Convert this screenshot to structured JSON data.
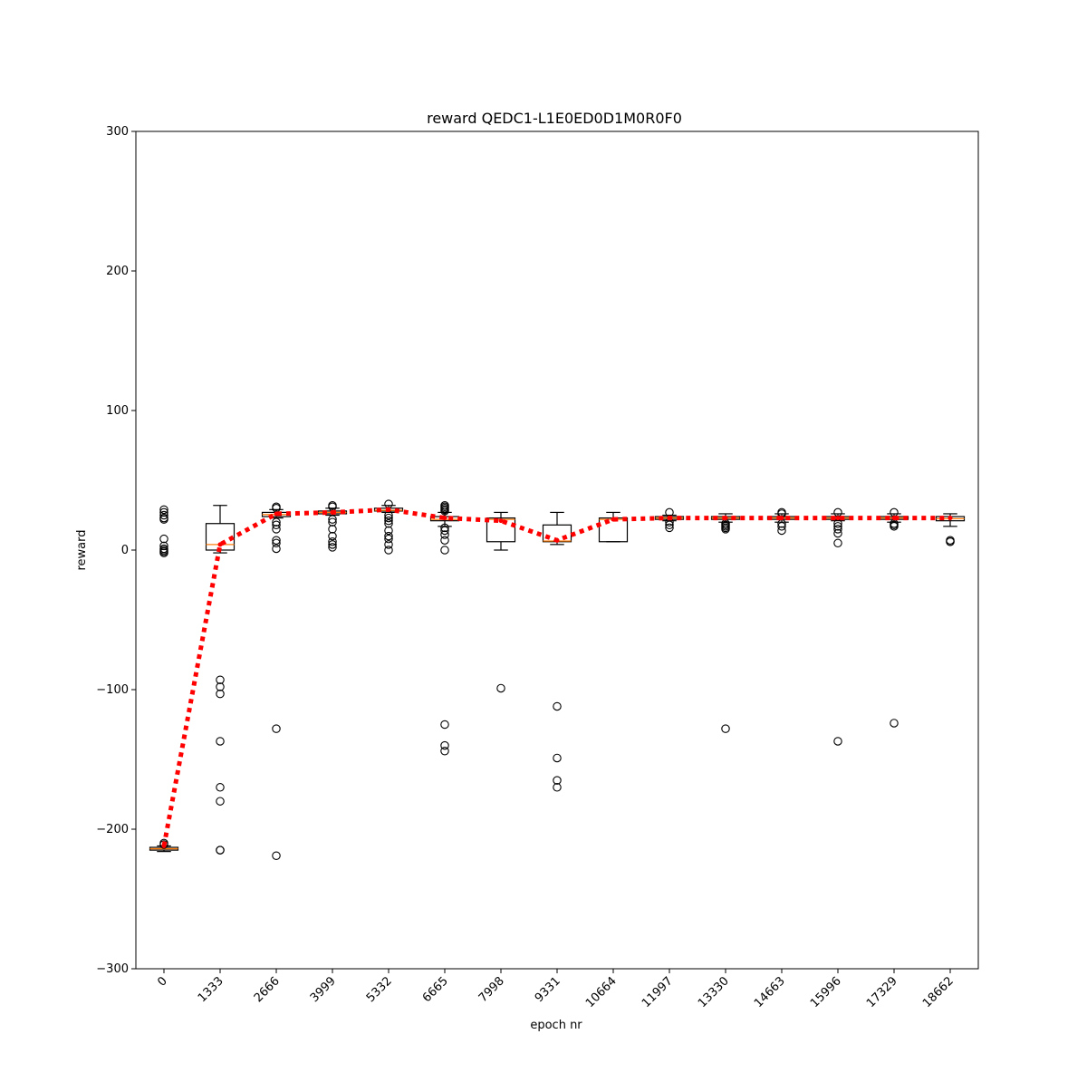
{
  "chart_data": {
    "type": "box",
    "title": "reward QEDC1-L1E0ED0D1M0R0F0",
    "xlabel": "epoch nr",
    "ylabel": "reward",
    "ylim": [
      -300,
      300
    ],
    "yticks": [
      -300,
      -200,
      -100,
      0,
      100,
      200,
      300
    ],
    "ytick_labels": [
      "−300",
      "−200",
      "−100",
      "0",
      "100",
      "200",
      "300"
    ],
    "categories": [
      "0",
      "1333",
      "2666",
      "3999",
      "5332",
      "6665",
      "7998",
      "9331",
      "10664",
      "11997",
      "13330",
      "14663",
      "15996",
      "17329",
      "18662"
    ],
    "boxes": [
      {
        "q1": -215,
        "median": -214,
        "q3": -213,
        "whisker_low": -216,
        "whisker_high": -212,
        "outliers": [
          29,
          27,
          25,
          23,
          22,
          8,
          3,
          1,
          0,
          -1,
          -2,
          -210,
          -211
        ]
      },
      {
        "q1": 0,
        "median": 4,
        "q3": 19,
        "whisker_low": -2,
        "whisker_high": 32,
        "outliers": [
          -93,
          -98,
          -103,
          -137,
          -170,
          -180,
          -215,
          -215
        ]
      },
      {
        "q1": 24,
        "median": 25.5,
        "q3": 27,
        "whisker_low": 23,
        "whisker_high": 29,
        "outliers": [
          31,
          30,
          20,
          18,
          15,
          7,
          5,
          1,
          -128,
          -219
        ]
      },
      {
        "q1": 26,
        "median": 27,
        "q3": 28,
        "whisker_low": 25,
        "whisker_high": 30,
        "outliers": [
          32,
          31,
          22,
          20,
          15,
          10,
          6,
          4,
          2
        ]
      },
      {
        "q1": 28,
        "median": 28.5,
        "q3": 30,
        "whisker_low": 27,
        "whisker_high": 32,
        "outliers": [
          33,
          25,
          23,
          21,
          19,
          14,
          10,
          8,
          4,
          0
        ]
      },
      {
        "q1": 21,
        "median": 22,
        "q3": 24,
        "whisker_low": 17,
        "whisker_high": 27,
        "outliers": [
          32,
          31,
          30,
          29,
          28,
          16,
          14,
          11,
          7,
          0,
          -125,
          -140,
          -144
        ]
      },
      {
        "q1": 6,
        "median": 22,
        "q3": 23,
        "whisker_low": 0,
        "whisker_high": 27,
        "outliers": [
          -99
        ]
      },
      {
        "q1": 6,
        "median": 6.5,
        "q3": 18,
        "whisker_low": 4,
        "whisker_high": 27,
        "outliers": [
          -112,
          -149,
          -165,
          -170
        ]
      },
      {
        "q1": 6,
        "median": 22,
        "q3": 23,
        "whisker_low": 6,
        "whisker_high": 27,
        "outliers": []
      },
      {
        "q1": 22,
        "median": 23,
        "q3": 24,
        "whisker_low": 21,
        "whisker_high": 25,
        "outliers": [
          27,
          20,
          18,
          16
        ]
      },
      {
        "q1": 22,
        "median": 23,
        "q3": 24,
        "whisker_low": 20,
        "whisker_high": 26,
        "outliers": [
          19,
          18,
          17,
          16,
          15,
          -128
        ]
      },
      {
        "q1": 22,
        "median": 23,
        "q3": 24,
        "whisker_low": 20,
        "whisker_high": 26,
        "outliers": [
          27,
          26,
          19,
          17,
          14
        ]
      },
      {
        "q1": 22,
        "median": 23,
        "q3": 24,
        "whisker_low": 21,
        "whisker_high": 26,
        "outliers": [
          27,
          19,
          17,
          15,
          12,
          5,
          -137
        ]
      },
      {
        "q1": 22,
        "median": 23,
        "q3": 24,
        "whisker_low": 20,
        "whisker_high": 26,
        "outliers": [
          27,
          19,
          18,
          17,
          -124
        ]
      },
      {
        "q1": 21,
        "median": 22.5,
        "q3": 24,
        "whisker_low": 17,
        "whisker_high": 26,
        "outliers": [
          7,
          6,
          6
        ]
      }
    ],
    "mean_line": {
      "values": [
        -212,
        4,
        26,
        27,
        29,
        23,
        21,
        7,
        22,
        23,
        23,
        23,
        23,
        23,
        23
      ],
      "color": "#ff0000",
      "style": "dotted"
    },
    "colors": {
      "median": "#ff7f0e",
      "box": "#000000",
      "mean": "#ff0000"
    },
    "grid": false,
    "legend": "none"
  }
}
